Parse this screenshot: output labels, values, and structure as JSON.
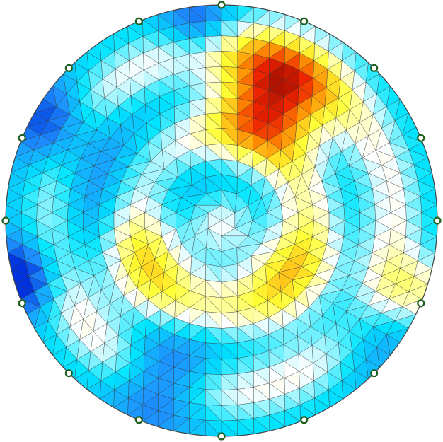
{
  "figure": {
    "kind": "circular triangular finite-element mesh with nodal color map",
    "mesh": {
      "rings": 14,
      "boundary_edges": 84
    },
    "colormap": {
      "name": "blue-cyan-white-yellow-red",
      "stops": [
        "#0033dd",
        "#1e90ff",
        "#00e5ff",
        "#ffffff",
        "#ffff33",
        "#ff8800",
        "#ee2200",
        "#660000"
      ]
    },
    "field_blobs": [
      {
        "r": 0.62,
        "theta_deg": 67,
        "amp": 1.65,
        "sigma": 0.19
      },
      {
        "r": 0.38,
        "theta_deg": 208,
        "amp": 0.7,
        "sigma": 0.2
      },
      {
        "r": 0.4,
        "theta_deg": 322,
        "amp": 0.65,
        "sigma": 0.2
      },
      {
        "r": 0.97,
        "theta_deg": 340,
        "amp": 0.65,
        "sigma": 0.12
      },
      {
        "r": 0.82,
        "theta_deg": 322,
        "amp": -0.45,
        "sigma": 0.15
      },
      {
        "r": 0.8,
        "theta_deg": 250,
        "amp": -0.8,
        "sigma": 0.15
      },
      {
        "r": 0.97,
        "theta_deg": 196,
        "amp": -0.95,
        "sigma": 0.12
      },
      {
        "r": 0.9,
        "theta_deg": 150,
        "amp": -0.7,
        "sigma": 0.13
      },
      {
        "r": 0.92,
        "theta_deg": 97,
        "amp": -0.6,
        "sigma": 0.11
      },
      {
        "r": 0.55,
        "theta_deg": 170,
        "amp": -0.35,
        "sigma": 0.25
      },
      {
        "r": 0.0,
        "theta_deg": 0,
        "amp": -0.2,
        "sigma": 0.2
      }
    ],
    "electrodes": {
      "count": 16,
      "stroke_color": "#1f5f1f",
      "fill_color": "#ffffff",
      "angles_deg": [
        0,
        22.5,
        45,
        67.5,
        90,
        112.5,
        135,
        157.5,
        180,
        202.5,
        225,
        247.5,
        270,
        292.5,
        315,
        337.5
      ]
    },
    "mesh_line_color": "#333333",
    "boundary_color": "#444444"
  }
}
